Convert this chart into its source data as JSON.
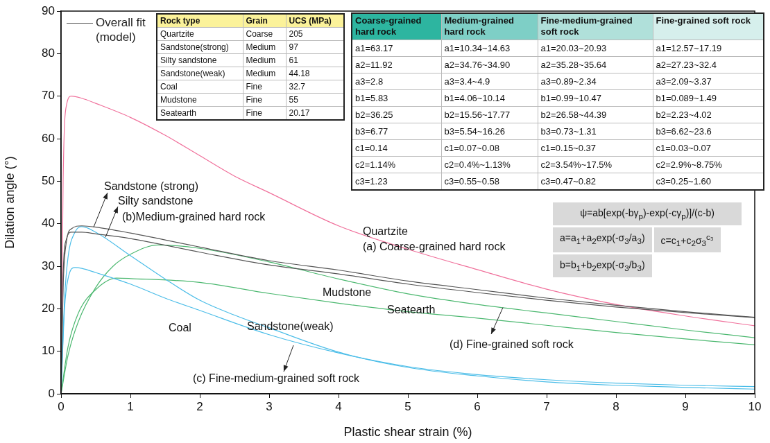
{
  "chart_data": [
    {
      "type": "line",
      "xlabel": "Plastic shear strain (%)",
      "ylabel": "Dilation angle (°)",
      "xlim": [
        0,
        10
      ],
      "ylim": [
        0,
        90
      ],
      "xticks": [
        0,
        1,
        2,
        3,
        4,
        5,
        6,
        7,
        8,
        9,
        10
      ],
      "yticks": [
        0,
        10,
        20,
        30,
        40,
        50,
        60,
        70,
        80,
        90
      ],
      "grid": false,
      "marker": "none",
      "legend": "top left",
      "series": [
        {
          "name": "Overall fit (model)",
          "color": "#555555",
          "x": [
            0,
            0.03,
            0.08,
            0.15,
            0.3,
            0.5,
            1,
            2,
            3,
            4,
            5,
            6,
            7,
            8,
            9,
            10
          ],
          "values": [
            0,
            25,
            36,
            38.8,
            39.5,
            39.2,
            37.8,
            34.5,
            31.3,
            29.1,
            26.5,
            24.5,
            22.5,
            20.8,
            19.3,
            18
          ]
        },
        {
          "color": "#555555",
          "x": [
            0,
            0.03,
            0.08,
            0.15,
            0.3,
            0.5,
            1,
            2,
            3,
            4,
            5,
            6,
            7,
            8,
            9,
            10
          ],
          "values": [
            0,
            28,
            36.5,
            38,
            38,
            37.6,
            36.5,
            33.3,
            30.3,
            28.2,
            25.8,
            23.8,
            22,
            20.4,
            19.1,
            17.9
          ]
        },
        {
          "color": "#f0709b",
          "x": [
            0,
            0.03,
            0.08,
            0.15,
            0.3,
            0.5,
            1,
            1.5,
            2,
            2.5,
            3,
            4,
            5,
            6,
            7,
            8,
            9,
            10
          ],
          "values": [
            0,
            50,
            68,
            70,
            69.5,
            68.3,
            65,
            60.8,
            56,
            51.2,
            47.3,
            39.5,
            34,
            29.2,
            24.6,
            21,
            18.3,
            16
          ]
        },
        {
          "color": "#4bbde8",
          "x": [
            0,
            0.05,
            0.1,
            0.2,
            0.3,
            0.5,
            1,
            1.5,
            2,
            2.5,
            3,
            4,
            5,
            6,
            7,
            8,
            9,
            10
          ],
          "values": [
            0,
            22,
            32,
            38,
            39.3,
            38,
            32.5,
            27,
            22,
            18.5,
            15.5,
            9.8,
            6.2,
            4.2,
            2.8,
            2,
            1.5,
            1.1
          ]
        },
        {
          "color": "#4bbde8",
          "x": [
            0,
            0.05,
            0.1,
            0.2,
            0.3,
            0.5,
            1,
            1.5,
            2,
            3,
            4,
            5,
            6,
            7,
            8,
            9,
            10
          ],
          "values": [
            0,
            20,
            27,
            29.7,
            29.5,
            28.5,
            25.8,
            22.5,
            19.6,
            13.9,
            9.6,
            6.4,
            4.5,
            3.3,
            2.5,
            2,
            1.7
          ]
        },
        {
          "color": "#4cb870",
          "x": [
            0,
            0.1,
            0.25,
            0.5,
            0.75,
            1,
            1.4,
            2,
            3,
            4,
            5,
            6,
            7,
            8,
            9,
            10
          ],
          "values": [
            0,
            9,
            17,
            25,
            30,
            32.8,
            35,
            34.2,
            31,
            27,
            23.5,
            21,
            19,
            17,
            15,
            13.2
          ]
        },
        {
          "color": "#4cb870",
          "x": [
            0,
            0.1,
            0.25,
            0.5,
            0.8,
            1,
            2,
            3,
            4,
            5,
            6,
            7,
            8,
            9,
            10
          ],
          "values": [
            0,
            11,
            19,
            24.5,
            27.2,
            27.1,
            26.2,
            23.6,
            21.3,
            19.3,
            17.8,
            16.1,
            14.4,
            12.9,
            11.5
          ]
        }
      ],
      "annotations": [
        "Quartzite",
        "(a) Coarse-grained hard rock",
        {
          "text": "Sandstone (strong)",
          "x": 0.47,
          "y": 39.2
        },
        {
          "text": "Silty sandstone",
          "x": 0.64,
          "y": 36.8
        },
        "(b)Medium-grained hard rock",
        "Mudstone",
        "Seatearth",
        {
          "text": "(d) Fine-grained soft rock",
          "x": 6.37,
          "y": 20.3
        },
        "Coal",
        "Sandstone(weak)",
        {
          "text": "(c) Fine-medium-grained soft rock",
          "x": 3.35,
          "y": 11.4
        },
        "ψ=ab[exp(-bγ$_{p}$)-exp(-cγ$_{p}$)]/(c-b)",
        "a=a$_{1}$+a$_{2}$exp(-σ$_{3}$/a$_{3}$)",
        "c=c$_{1}$+c$_{2}$σ$_{3}$$^{c₃}$",
        "b=b$_{1}$+b$_{2}$exp(-σ$_{3}$/b$_{3}$)"
      ]
    },
    {
      "type": "other",
      "categories": [
        "Rock type",
        "Grain",
        "UCS (MPa)"
      ],
      "colors": [
        "#fbf29a",
        "#fbf29a",
        "#fbf29a"
      ],
      "annotations": [
        "Quartzite",
        "Coarse",
        "205",
        "Sandstone(strong)",
        "Medium",
        "97",
        "Silty sandstone",
        "Medium",
        "61",
        "Sandstone(weak)",
        "Medium",
        "44.18",
        "Coal",
        "Fine",
        "32.7",
        "Mudstone",
        "Fine",
        "55",
        "Seatearth",
        "Fine",
        "20.17"
      ]
    },
    {
      "type": "other",
      "categories": [
        "Coarse-grained hard rock",
        "Medium-grained hard rock",
        "Fine-medium-grained soft rock",
        "Fine-grained soft rock"
      ],
      "colors": [
        "#2db5a0",
        "#7ecfc6",
        "#b0e0da",
        "#d6efec"
      ],
      "annotations": [
        "a1=63.17",
        "a1=10.34~14.63",
        "a1=20.03~20.93",
        "a1=12.57~17.19",
        "a2=11.92",
        "a2=34.76~34.90",
        "a2=35.28~35.64",
        "a2=27.23~32.4",
        "a3=2.8",
        "a3=3.4~4.9",
        "a3=0.89~2.34",
        "a3=2.09~3.37",
        "b1=5.83",
        "b1=4.06~10.14",
        "b1=0.99~10.47",
        "b1=0.089~1.49",
        "b2=36.25",
        "b2=15.56~17.77",
        "b2=26.58~44.39",
        "b2=2.23~4.02",
        "b3=6.77",
        "b3=5.54~16.26",
        "b3=0.73~1.31",
        "b3=6.62~23.6",
        "c1=0.14",
        "c1=0.07~0.08",
        "c1=0.15~0.37",
        "c1=0.03~0.07",
        "c2=1.14%",
        "c2=0.4%~1.13%",
        "c2=3.54%~17.5%",
        "c2=2.9%~8.75%",
        "c3=1.23",
        "c3=0.55~0.58",
        "c3=0.47~0.82",
        "c3=0.25~1.60"
      ]
    }
  ]
}
